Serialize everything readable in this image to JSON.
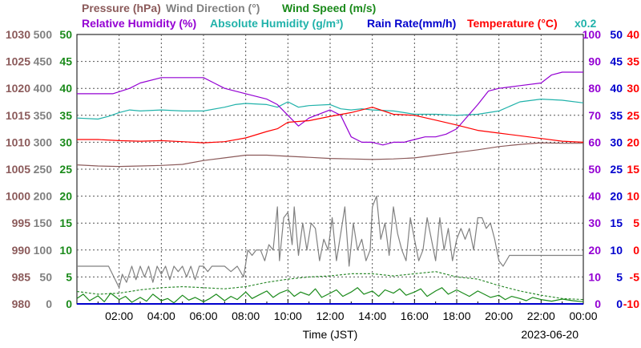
{
  "chart_data": {
    "type": "line",
    "title_rows": [
      [
        {
          "text": "Pressure (hPa)",
          "color": "#8b5a5a"
        },
        {
          "text": "Wind Direction (°)",
          "color": "#808080"
        },
        {
          "text": "Wind Speed (m/s)",
          "color": "#1a8a1a"
        }
      ],
      [
        {
          "text": "Relative Humidity (%)",
          "color": "#9400d3"
        },
        {
          "text": "Absolute Humidity (g/m³)",
          "color": "#20b2aa"
        },
        {
          "text": "Rain Rate(mm/h)",
          "color": "#0000cd"
        },
        {
          "text": "Temperature (°C)",
          "color": "#ff0000"
        },
        {
          "text": "x0.2",
          "color": "#20b2aa"
        }
      ]
    ],
    "xlabel": "Time (JST)",
    "date": "2023-06-20",
    "x_range_hours": [
      0,
      24
    ],
    "x_ticks": [
      "02:00",
      "04:00",
      "06:00",
      "08:00",
      "10:00",
      "12:00",
      "14:00",
      "16:00",
      "18:00",
      "20:00",
      "22:00",
      "00:00"
    ],
    "grid": true,
    "left_axes": [
      {
        "name": "Pressure (hPa)",
        "color": "#8b5a5a",
        "ticks": [
          "1030",
          "1025",
          "1020",
          "1015",
          "1010",
          "1005",
          "1000",
          "995",
          "990",
          "985",
          "980"
        ]
      },
      {
        "name": "Wind Direction (°)",
        "color": "#808080",
        "ticks": [
          "500",
          "450",
          "400",
          "350",
          "300",
          "250",
          "200",
          "150",
          "100",
          "50",
          "0"
        ]
      },
      {
        "name": "Wind Speed (m/s)",
        "color": "#1a8a1a",
        "ticks": [
          "50",
          "45",
          "40",
          "35",
          "30",
          "25",
          "20",
          "15",
          "10",
          "5",
          "0"
        ]
      }
    ],
    "right_axes": [
      {
        "name": "Relative Humidity (%)",
        "color": "#9400d3",
        "ticks": [
          "100",
          "90",
          "80",
          "70",
          "60",
          "50",
          "40",
          "30",
          "20",
          "10",
          "0"
        ]
      },
      {
        "name": "Rain Rate(mm/h)",
        "color": "#0000cd",
        "ticks": [
          "50",
          "45",
          "40",
          "35",
          "30",
          "25",
          "20",
          "15",
          "10",
          "5",
          "0"
        ]
      },
      {
        "name": "Temperature (°C)",
        "color": "#ff0000",
        "ticks": [
          "40",
          "35",
          "30",
          "25",
          "20",
          "15",
          "10",
          "5",
          "0",
          "-5",
          "-10"
        ]
      }
    ],
    "series": [
      {
        "name": "Temperature (°C)",
        "color": "#ff0000",
        "axis": "temp",
        "range": [
          -10,
          40
        ],
        "x": [
          0,
          1,
          2,
          3,
          4,
          5,
          6,
          7,
          8,
          9,
          9.5,
          10,
          11,
          12,
          13,
          14,
          15,
          16,
          17,
          18,
          19,
          20,
          21,
          22,
          23,
          24
        ],
        "y": [
          20.5,
          20.5,
          20.3,
          20.2,
          20.3,
          20.1,
          19.9,
          20.1,
          20.8,
          22.0,
          22.5,
          23.7,
          24.0,
          24.8,
          25.5,
          26.5,
          25.2,
          25.0,
          24.1,
          23.2,
          22.2,
          21.7,
          21.2,
          20.7,
          20.2,
          20.0
        ]
      },
      {
        "name": "Relative Humidity (%)",
        "color": "#9400d3",
        "axis": "rh",
        "range": [
          0,
          100
        ],
        "x": [
          0,
          1,
          1.7,
          2.5,
          3,
          4,
          5,
          6,
          6.5,
          7,
          8,
          9,
          9.5,
          10,
          10.5,
          11,
          12,
          12.5,
          13,
          13.5,
          14,
          14.5,
          15,
          15.5,
          16,
          16.5,
          17,
          17.5,
          18,
          19,
          19.5,
          20,
          21,
          22,
          22.5,
          23,
          24
        ],
        "y": [
          78,
          78,
          78,
          80,
          82,
          84,
          84,
          84,
          82,
          80,
          78,
          76,
          74,
          70,
          66,
          69,
          72,
          70,
          62,
          60,
          60,
          59,
          60,
          60,
          61,
          62,
          62,
          63,
          65,
          74,
          79,
          80,
          81,
          82,
          85,
          86,
          86
        ]
      },
      {
        "name": "Absolute Humidity (g/m³)",
        "color": "#20b2aa",
        "axis": "wdir",
        "range": [
          0,
          500
        ],
        "x": [
          0,
          1,
          1.5,
          2,
          2.5,
          3,
          4,
          5,
          6,
          7,
          7.5,
          8,
          9,
          9.5,
          10,
          10.5,
          11,
          12,
          12.5,
          13,
          13.5,
          14,
          15,
          15.5,
          16,
          17,
          18,
          19,
          20,
          21,
          22,
          23,
          24
        ],
        "y": [
          345,
          343,
          348,
          355,
          360,
          358,
          360,
          358,
          358,
          365,
          370,
          372,
          370,
          365,
          375,
          365,
          368,
          370,
          362,
          360,
          362,
          360,
          358,
          355,
          352,
          352,
          350,
          352,
          358,
          375,
          380,
          378,
          373
        ]
      },
      {
        "name": "Pressure (hPa)",
        "color": "#8b5a5a",
        "axis": "pres",
        "range": [
          980,
          1030
        ],
        "x": [
          0,
          1,
          2,
          3,
          4,
          5,
          6,
          7,
          8,
          9,
          10,
          11,
          12,
          13,
          14,
          15,
          16,
          17,
          18,
          19,
          20,
          21,
          22,
          23,
          24
        ],
        "y": [
          1005.8,
          1005.6,
          1005.5,
          1005.6,
          1005.7,
          1005.9,
          1006.6,
          1007.1,
          1007.6,
          1007.6,
          1007.4,
          1007.2,
          1007.0,
          1006.9,
          1006.8,
          1006.9,
          1007.1,
          1007.6,
          1008.1,
          1008.6,
          1009.2,
          1009.6,
          1009.9,
          1009.8,
          1009.8
        ]
      },
      {
        "name": "Wind Direction (°)",
        "color": "#808080",
        "axis": "wdir",
        "range": [
          0,
          500
        ],
        "x": [
          0,
          0.3,
          1.5,
          1.75,
          2,
          2.15,
          2.35,
          2.6,
          2.8,
          3.0,
          3.2,
          3.4,
          3.6,
          3.8,
          4.0,
          4.2,
          4.4,
          4.6,
          4.8,
          5.0,
          5.2,
          5.4,
          5.6,
          5.8,
          6.0,
          6.2,
          6.4,
          6.6,
          6.8,
          7.0,
          7.3,
          7.6,
          7.9,
          8.1,
          8.3,
          8.5,
          8.7,
          8.9,
          9.1,
          9.3,
          9.5,
          9.6,
          9.8,
          10.0,
          10.2,
          10.3,
          10.5,
          10.7,
          10.9,
          11.1,
          11.3,
          11.5,
          11.7,
          11.9,
          12.1,
          12.3,
          12.5,
          12.7,
          12.9,
          13.1,
          13.3,
          13.5,
          13.7,
          13.9,
          14.0,
          14.2,
          14.4,
          14.6,
          14.8,
          15.0,
          15.2,
          15.4,
          15.6,
          15.8,
          16.0,
          16.2,
          16.4,
          16.6,
          16.8,
          17.0,
          17.2,
          17.4,
          17.6,
          17.8,
          18.0,
          18.2,
          18.4,
          18.6,
          18.8,
          19.0,
          19.2,
          19.4,
          19.6,
          19.8,
          20.0,
          20.2,
          20.5,
          21.0,
          22.0,
          23.0,
          24.0
        ],
        "y": [
          70,
          70,
          70,
          50,
          30,
          55,
          40,
          70,
          45,
          70,
          50,
          70,
          40,
          70,
          55,
          70,
          45,
          70,
          60,
          70,
          50,
          70,
          45,
          70,
          70,
          60,
          70,
          70,
          70,
          70,
          60,
          70,
          50,
          100,
          90,
          100,
          100,
          80,
          110,
          100,
          180,
          80,
          160,
          170,
          110,
          180,
          90,
          150,
          100,
          150,
          140,
          80,
          120,
          100,
          160,
          80,
          130,
          180,
          70,
          150,
          100,
          120,
          80,
          100,
          180,
          200,
          120,
          150,
          90,
          180,
          130,
          100,
          80,
          160,
          120,
          80,
          100,
          160,
          120,
          80,
          160,
          100,
          140,
          80,
          120,
          140,
          120,
          140,
          100,
          160,
          160,
          140,
          150,
          120,
          80,
          70,
          90,
          90,
          90,
          90,
          90
        ]
      },
      {
        "name": "Wind Speed (m/s)",
        "color": "#1a8a1a",
        "axis": "wspd",
        "range": [
          0,
          50
        ],
        "x": [
          0,
          0.3,
          0.6,
          1,
          1.3,
          1.6,
          2,
          2.3,
          2.6,
          3,
          3.3,
          3.6,
          4,
          4.3,
          4.6,
          5,
          5.3,
          5.6,
          6,
          6.3,
          6.6,
          7,
          7.3,
          7.6,
          8,
          8.3,
          8.6,
          9,
          9.3,
          9.6,
          10,
          10.3,
          10.6,
          11,
          11.3,
          11.6,
          12,
          12.3,
          12.6,
          13,
          13.3,
          13.6,
          14,
          14.3,
          14.6,
          15,
          15.3,
          15.6,
          16,
          16.3,
          16.6,
          17,
          17.3,
          17.6,
          18,
          18.3,
          18.6,
          19,
          19.3,
          19.6,
          20,
          20.3,
          20.6,
          21,
          21.3,
          21.6,
          22,
          22.5,
          23,
          23.5,
          24
        ],
        "y": [
          1.0,
          1.8,
          0.6,
          1.5,
          0.4,
          2.0,
          0.8,
          1.4,
          0.3,
          1.2,
          0.5,
          1.8,
          0.6,
          1.0,
          0.2,
          1.6,
          0.7,
          1.2,
          0.4,
          1.0,
          1.8,
          0.6,
          1.4,
          0.8,
          2.2,
          1.0,
          1.6,
          2.4,
          1.2,
          2.0,
          2.6,
          1.4,
          2.2,
          1.6,
          2.8,
          1.2,
          2.0,
          2.6,
          1.4,
          2.2,
          3.0,
          1.8,
          2.4,
          1.4,
          2.6,
          2.0,
          2.8,
          1.6,
          2.2,
          2.8,
          1.4,
          2.4,
          3.0,
          1.8,
          2.6,
          2.0,
          1.4,
          2.4,
          1.8,
          1.2,
          1.6,
          0.8,
          1.4,
          1.0,
          0.6,
          1.2,
          0.8,
          0.5,
          0.9,
          0.6,
          0.4
        ]
      },
      {
        "name": "Wind Speed avg (m/s)",
        "color": "#2e8b2e",
        "axis": "wspd",
        "range": [
          0,
          50
        ],
        "dashed": true,
        "x": [
          0,
          1,
          2,
          3,
          4,
          5,
          6,
          7,
          8,
          9,
          10,
          11,
          12,
          13,
          14,
          15,
          16,
          17,
          18,
          19,
          20,
          21,
          22,
          23,
          24
        ],
        "y": [
          2.3,
          1.8,
          2.0,
          2.6,
          3.0,
          3.2,
          3.0,
          2.8,
          3.2,
          4.0,
          4.6,
          5.0,
          5.2,
          5.6,
          5.6,
          5.2,
          5.6,
          6.0,
          5.0,
          4.6,
          3.4,
          2.4,
          1.6,
          1.0,
          0.8
        ]
      },
      {
        "name": "Rain Rate(mm/h)",
        "color": "#0000cd",
        "axis": "rain",
        "range": [
          0,
          50
        ],
        "x": [
          0,
          24
        ],
        "y": [
          0,
          0
        ]
      }
    ]
  }
}
